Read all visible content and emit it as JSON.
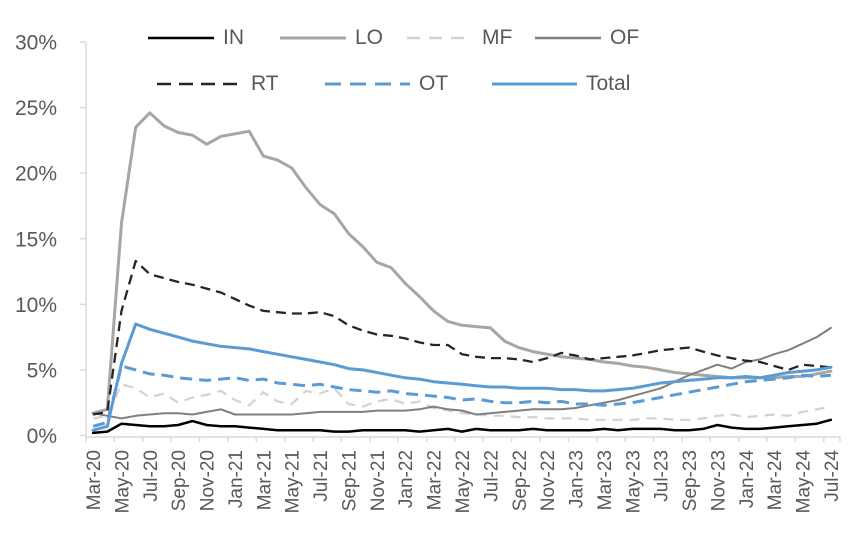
{
  "chart_data": {
    "type": "line",
    "title": "",
    "xlabel": "",
    "ylabel": "",
    "ylim": [
      0,
      30
    ],
    "y_tick_labels": [
      "0%",
      "5%",
      "10%",
      "15%",
      "20%",
      "25%",
      "30%"
    ],
    "x_tick_label_interval": 2,
    "grid": false,
    "legend_position": "top",
    "background_color": "#ffffff",
    "axis_color": "#d9d9d9",
    "label_color": "#595959",
    "x_labels": [
      "Mar-20",
      "Apr-20",
      "May-20",
      "Jun-20",
      "Jul-20",
      "Aug-20",
      "Sep-20",
      "Oct-20",
      "Nov-20",
      "Dec-20",
      "Jan-21",
      "Feb-21",
      "Mar-21",
      "Apr-21",
      "May-21",
      "Jun-21",
      "Jul-21",
      "Aug-21",
      "Sep-21",
      "Oct-21",
      "Nov-21",
      "Dec-21",
      "Jan-22",
      "Feb-22",
      "Mar-22",
      "Apr-22",
      "May-22",
      "Jun-22",
      "Jul-22",
      "Aug-22",
      "Sep-22",
      "Oct-22",
      "Nov-22",
      "Dec-22",
      "Jan-23",
      "Feb-23",
      "Mar-23",
      "Apr-23",
      "May-23",
      "Jun-23",
      "Jul-23",
      "Aug-23",
      "Sep-23",
      "Oct-23",
      "Nov-23",
      "Dec-23",
      "Jan-24",
      "Feb-24",
      "Mar-24",
      "Apr-24",
      "May-24",
      "Jun-24",
      "Jul-24"
    ],
    "legend_rows": [
      [
        "IN",
        "LO",
        "MF",
        "OF"
      ],
      [
        "RT",
        "OT",
        "Total"
      ]
    ],
    "series": [
      {
        "name": "IN",
        "color": "#000000",
        "style": "solid",
        "width": 2.5,
        "values": [
          0.2,
          0.3,
          0.9,
          0.8,
          0.7,
          0.7,
          0.8,
          1.1,
          0.8,
          0.7,
          0.7,
          0.6,
          0.5,
          0.4,
          0.4,
          0.4,
          0.4,
          0.3,
          0.3,
          0.4,
          0.4,
          0.4,
          0.4,
          0.3,
          0.4,
          0.5,
          0.3,
          0.5,
          0.4,
          0.4,
          0.4,
          0.5,
          0.4,
          0.4,
          0.4,
          0.4,
          0.5,
          0.4,
          0.5,
          0.5,
          0.5,
          0.4,
          0.4,
          0.5,
          0.8,
          0.6,
          0.5,
          0.5,
          0.6,
          0.7,
          0.8,
          0.9,
          1.2
        ]
      },
      {
        "name": "LO",
        "color": "#a6a6a6",
        "style": "solid",
        "width": 3,
        "values": [
          1.7,
          2.0,
          16.2,
          23.5,
          24.6,
          23.6,
          23.1,
          22.9,
          22.2,
          22.8,
          23.0,
          23.2,
          21.3,
          21.0,
          20.4,
          18.9,
          17.6,
          16.9,
          15.4,
          14.4,
          13.2,
          12.8,
          11.6,
          10.6,
          9.5,
          8.7,
          8.4,
          8.3,
          8.2,
          7.2,
          6.7,
          6.4,
          6.2,
          6.0,
          5.9,
          5.8,
          5.6,
          5.5,
          5.3,
          5.2,
          5.0,
          4.8,
          4.7,
          4.6,
          4.5,
          4.4,
          4.4,
          4.4,
          4.4,
          4.5,
          4.5,
          4.7,
          4.9
        ]
      },
      {
        "name": "MF",
        "color": "#d2d2d2",
        "style": "dashed",
        "width": 2.2,
        "values": [
          1.3,
          1.5,
          3.9,
          3.6,
          2.9,
          3.2,
          2.5,
          2.9,
          3.1,
          3.4,
          2.7,
          2.3,
          3.3,
          2.6,
          2.4,
          3.4,
          3.2,
          3.6,
          2.4,
          2.2,
          2.6,
          2.8,
          2.4,
          2.6,
          2.1,
          1.9,
          1.7,
          1.6,
          1.5,
          1.5,
          1.4,
          1.4,
          1.3,
          1.3,
          1.3,
          1.2,
          1.2,
          1.2,
          1.2,
          1.3,
          1.3,
          1.2,
          1.2,
          1.3,
          1.5,
          1.6,
          1.4,
          1.5,
          1.6,
          1.5,
          1.8,
          2.0,
          2.2
        ]
      },
      {
        "name": "OF",
        "color": "#7f7f7f",
        "style": "solid",
        "width": 2,
        "values": [
          1.7,
          1.5,
          1.3,
          1.5,
          1.6,
          1.7,
          1.7,
          1.6,
          1.8,
          2.0,
          1.6,
          1.6,
          1.6,
          1.6,
          1.6,
          1.7,
          1.8,
          1.8,
          1.8,
          1.8,
          1.9,
          1.9,
          1.9,
          2.0,
          2.2,
          2.0,
          1.9,
          1.6,
          1.7,
          1.8,
          1.9,
          2.0,
          2.0,
          2.0,
          2.1,
          2.3,
          2.5,
          2.7,
          3.0,
          3.3,
          3.6,
          4.1,
          4.6,
          5.0,
          5.4,
          5.1,
          5.6,
          5.8,
          6.2,
          6.5,
          7.0,
          7.5,
          8.2
        ]
      },
      {
        "name": "RT",
        "color": "#262626",
        "style": "dashed",
        "width": 2.3,
        "values": [
          1.6,
          1.8,
          9.5,
          13.3,
          12.3,
          12.0,
          11.7,
          11.5,
          11.2,
          10.9,
          10.4,
          9.9,
          9.5,
          9.4,
          9.3,
          9.3,
          9.4,
          9.1,
          8.4,
          8.0,
          7.7,
          7.6,
          7.4,
          7.1,
          6.9,
          6.9,
          6.2,
          6.0,
          5.9,
          5.9,
          5.8,
          5.6,
          5.9,
          6.3,
          6.1,
          5.8,
          5.9,
          6.0,
          6.1,
          6.3,
          6.5,
          6.6,
          6.7,
          6.4,
          6.1,
          5.9,
          5.7,
          5.6,
          5.3,
          5.0,
          5.4,
          5.3,
          5.2
        ]
      },
      {
        "name": "OT",
        "color": "#5b9bd5",
        "style": "dashed",
        "width": 3,
        "values": [
          0.7,
          1.0,
          5.3,
          5.0,
          4.7,
          4.6,
          4.4,
          4.3,
          4.2,
          4.3,
          4.4,
          4.2,
          4.3,
          4.0,
          3.9,
          3.8,
          3.9,
          3.7,
          3.5,
          3.4,
          3.3,
          3.4,
          3.2,
          3.1,
          3.0,
          2.9,
          2.7,
          2.8,
          2.6,
          2.5,
          2.5,
          2.6,
          2.5,
          2.6,
          2.4,
          2.4,
          2.3,
          2.4,
          2.5,
          2.7,
          2.9,
          3.1,
          3.3,
          3.5,
          3.7,
          3.9,
          4.1,
          4.2,
          4.3,
          4.4,
          4.6,
          4.5,
          4.6
        ]
      },
      {
        "name": "Total",
        "color": "#5b9bd5",
        "style": "solid",
        "width": 3,
        "values": [
          0.4,
          0.7,
          5.5,
          8.5,
          8.1,
          7.8,
          7.5,
          7.2,
          7.0,
          6.8,
          6.7,
          6.6,
          6.4,
          6.2,
          6.0,
          5.8,
          5.6,
          5.4,
          5.1,
          5.0,
          4.8,
          4.6,
          4.4,
          4.3,
          4.1,
          4.0,
          3.9,
          3.8,
          3.7,
          3.7,
          3.6,
          3.6,
          3.6,
          3.5,
          3.5,
          3.4,
          3.4,
          3.5,
          3.6,
          3.8,
          4.0,
          4.1,
          4.2,
          4.3,
          4.4,
          4.4,
          4.5,
          4.4,
          4.6,
          4.8,
          4.9,
          5.0,
          5.2
        ]
      }
    ]
  }
}
